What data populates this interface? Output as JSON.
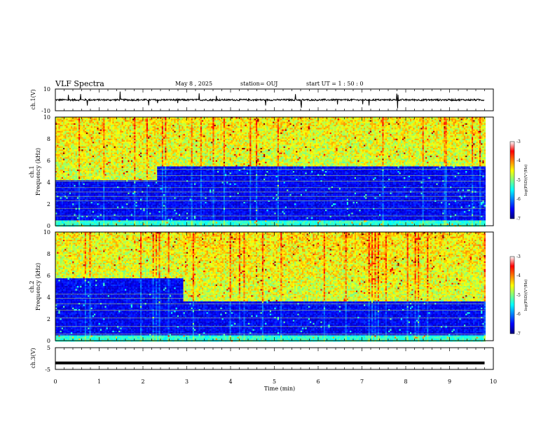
{
  "header": {
    "title": "VLF Spectra",
    "date": "May 8 , 2025",
    "station": "station= OUJ",
    "start": "start  UT  =   1 : 50 : 0"
  },
  "chart_data": [
    {
      "type": "line",
      "name": "ch1-waveform",
      "ylabel": "ch.1(V)",
      "ylim": [
        -10,
        10
      ],
      "yticks": [
        "10",
        "-10"
      ],
      "xlim": [
        0,
        10
      ],
      "baseline": 0,
      "color": "#000000"
    },
    {
      "type": "heatmap",
      "name": "ch1-spectrogram",
      "ylabel_top": "ch.1",
      "ylabel": "Frequency (kHz)",
      "ylim": [
        0,
        10
      ],
      "yticks": [
        "0",
        "2",
        "4",
        "6",
        "8",
        "10"
      ],
      "xlim": [
        0,
        10
      ],
      "data_end_min": 9.8,
      "colorbar": {
        "label": "log(PSD)(V²/Hz)",
        "range": [
          -7,
          -3
        ],
        "ticks": [
          "-3",
          "-4",
          "-5",
          "-6",
          "-7"
        ]
      }
    },
    {
      "type": "heatmap",
      "name": "ch2-spectrogram",
      "ylabel_top": "ch.2",
      "ylabel": "Frequency (kHz)",
      "ylim": [
        0,
        10
      ],
      "yticks": [
        "0",
        "2",
        "4",
        "6",
        "8",
        "10"
      ],
      "xlim": [
        0,
        10
      ],
      "data_end_min": 9.8,
      "colorbar": {
        "label": "log(PSD)(V²/Hz)",
        "range": [
          -7,
          -3
        ],
        "ticks": [
          "-3",
          "-4",
          "-5",
          "-6",
          "-7"
        ]
      }
    },
    {
      "type": "line",
      "name": "ch3-waveform",
      "ylabel": "ch.3(V)",
      "ylim": [
        -5,
        5
      ],
      "yticks": [
        "5",
        "-5"
      ],
      "xlim": [
        0,
        10
      ],
      "baseline": -2,
      "color": "#000000"
    }
  ],
  "xaxis": {
    "label": "Time  (min)",
    "ticks": [
      "0",
      "1",
      "2",
      "3",
      "4",
      "5",
      "6",
      "7",
      "8",
      "9",
      "10"
    ]
  }
}
